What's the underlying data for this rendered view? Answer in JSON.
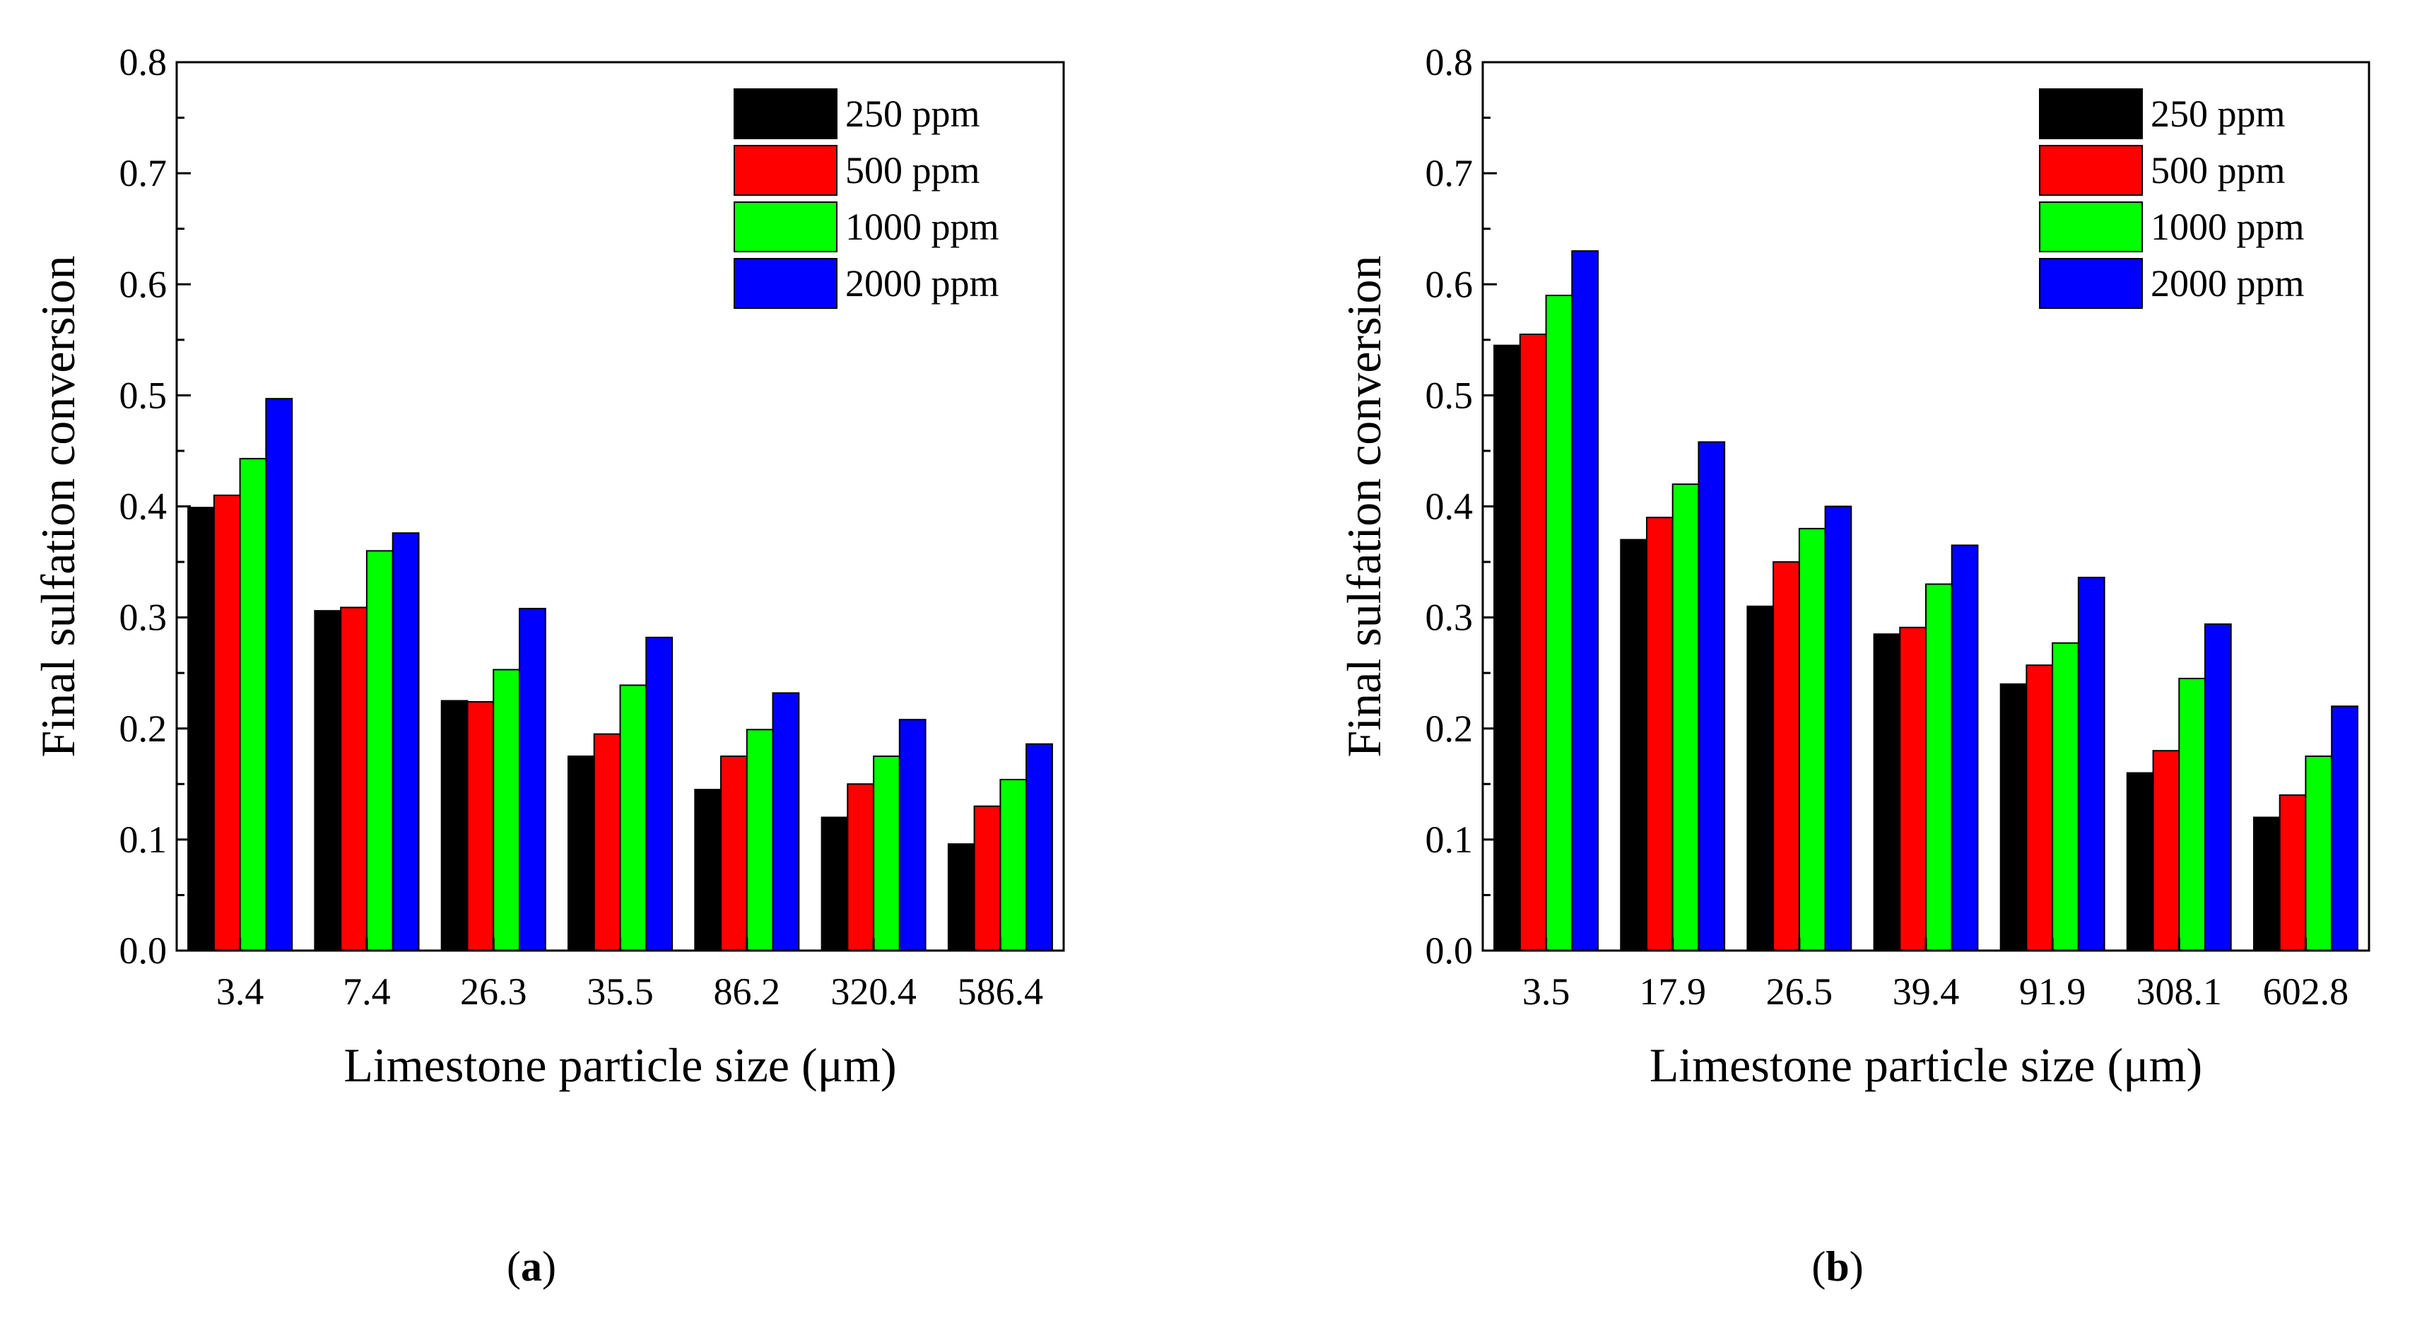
{
  "figure": {
    "panel_labels": [
      "a",
      "b"
    ]
  },
  "chart_data": [
    {
      "panel": "a",
      "type": "bar",
      "title": "",
      "xlabel": "Limestone particle size (μm)",
      "ylabel": "Final sulfation conversion",
      "ylim": [
        0,
        0.8
      ],
      "yticks": [
        "0.0",
        "0.1",
        "0.2",
        "0.3",
        "0.4",
        "0.5",
        "0.6",
        "0.7",
        "0.8"
      ],
      "categories": [
        "3.4",
        "7.4",
        "26.3",
        "35.5",
        "86.2",
        "320.4",
        "586.4"
      ],
      "legend_position": "top-right",
      "series": [
        {
          "name": "250 ppm",
          "color": "#000000",
          "values": [
            0.399,
            0.306,
            0.225,
            0.175,
            0.145,
            0.12,
            0.096
          ]
        },
        {
          "name": "500 ppm",
          "color": "#ff0000",
          "values": [
            0.41,
            0.309,
            0.224,
            0.195,
            0.175,
            0.15,
            0.13
          ]
        },
        {
          "name": "1000 ppm",
          "color": "#00ff00",
          "values": [
            0.443,
            0.36,
            0.253,
            0.239,
            0.199,
            0.175,
            0.154
          ]
        },
        {
          "name": "2000 ppm",
          "color": "#0000ff",
          "values": [
            0.497,
            0.376,
            0.308,
            0.282,
            0.232,
            0.208,
            0.186
          ]
        }
      ]
    },
    {
      "panel": "b",
      "type": "bar",
      "title": "",
      "xlabel": "Limestone particle size (μm)",
      "ylabel": "Final sulfation conversion",
      "ylim": [
        0,
        0.8
      ],
      "yticks": [
        "0.0",
        "0.1",
        "0.2",
        "0.3",
        "0.4",
        "0.5",
        "0.6",
        "0.7",
        "0.8"
      ],
      "categories": [
        "3.5",
        "17.9",
        "26.5",
        "39.4",
        "91.9",
        "308.1",
        "602.8"
      ],
      "legend_position": "top-right",
      "series": [
        {
          "name": "250 ppm",
          "color": "#000000",
          "values": [
            0.545,
            0.37,
            0.31,
            0.285,
            0.24,
            0.16,
            0.12
          ]
        },
        {
          "name": "500 ppm",
          "color": "#ff0000",
          "values": [
            0.555,
            0.39,
            0.35,
            0.291,
            0.257,
            0.18,
            0.14
          ]
        },
        {
          "name": "1000 ppm",
          "color": "#00ff00",
          "values": [
            0.59,
            0.42,
            0.38,
            0.33,
            0.277,
            0.245,
            0.175
          ]
        },
        {
          "name": "2000 ppm",
          "color": "#0000ff",
          "values": [
            0.63,
            0.458,
            0.4,
            0.365,
            0.336,
            0.294,
            0.22
          ]
        }
      ]
    }
  ]
}
